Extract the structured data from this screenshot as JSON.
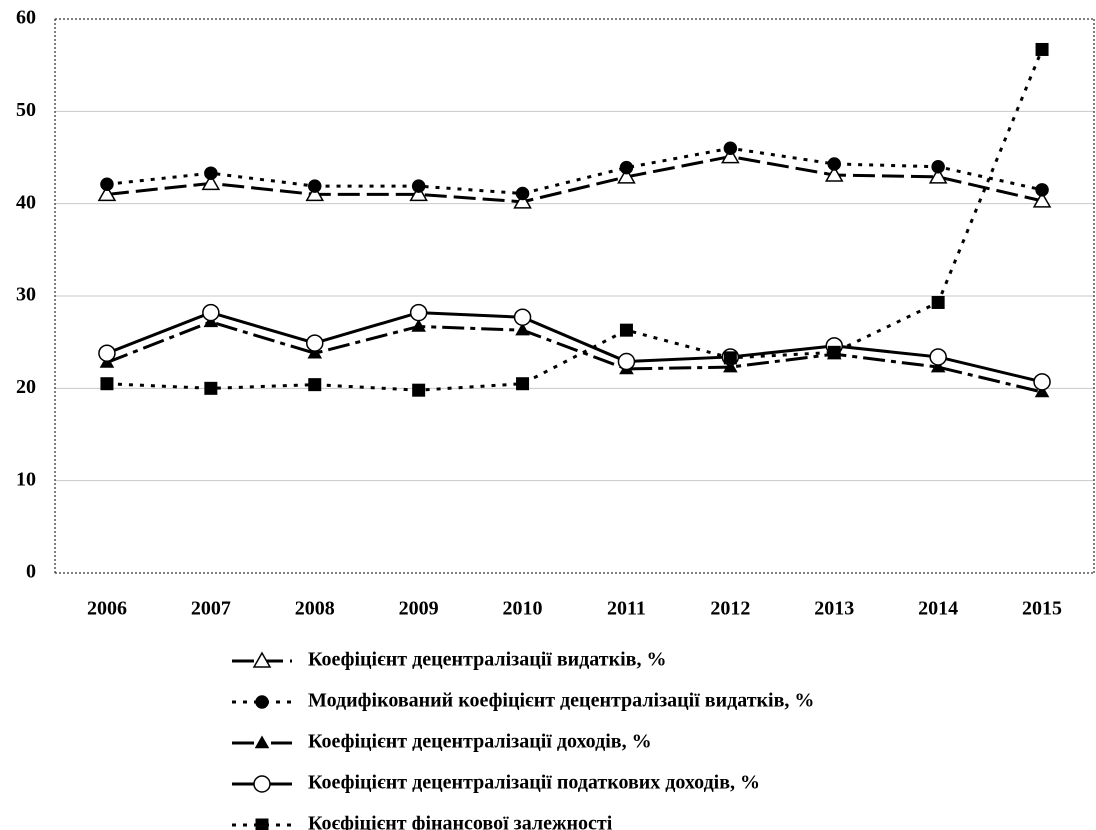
{
  "chart_data": {
    "type": "line",
    "categories": [
      "2006",
      "2007",
      "2008",
      "2009",
      "2010",
      "2011",
      "2012",
      "2013",
      "2014",
      "2015"
    ],
    "ylim": [
      0,
      60
    ],
    "yticks": [
      0,
      10,
      20,
      30,
      40,
      50,
      60
    ],
    "grid": true,
    "legend": "bottom",
    "series": [
      {
        "name": "Коефіцієнт децентралізації видатків, %",
        "color": "#000000",
        "marker": "triangle-open",
        "dash": "long-dash",
        "values": [
          41.0,
          42.2,
          41.0,
          41.0,
          40.2,
          42.9,
          45.1,
          43.1,
          42.9,
          40.3
        ]
      },
      {
        "name": "Модифікований коефіцієнт децентралізації видатків,  %",
        "color": "#000000",
        "marker": "circle-filled",
        "dash": "dot",
        "values": [
          42.1,
          43.3,
          41.9,
          41.9,
          41.1,
          43.9,
          46.0,
          44.3,
          44.0,
          41.5
        ]
      },
      {
        "name": "Коефіцієнт децентралізації доходів,  %",
        "color": "#000000",
        "marker": "triangle-filled",
        "dash": "dash-dot",
        "values": [
          22.8,
          27.2,
          23.8,
          26.7,
          26.3,
          22.1,
          22.3,
          23.7,
          22.3,
          19.6
        ]
      },
      {
        "name": "Коефіцієнт децентралізації податкових доходів,  %",
        "color": "#000000",
        "marker": "circle-open",
        "dash": "solid",
        "values": [
          23.8,
          28.2,
          24.9,
          28.2,
          27.7,
          22.9,
          23.4,
          24.6,
          23.4,
          20.7
        ]
      },
      {
        "name": "Коєфіцієнт фінансової залежності",
        "color": "#000000",
        "marker": "square-filled",
        "dash": "dot",
        "values": [
          20.5,
          20.0,
          20.4,
          19.8,
          20.5,
          26.3,
          23.3,
          23.9,
          29.3,
          56.7
        ]
      }
    ]
  }
}
